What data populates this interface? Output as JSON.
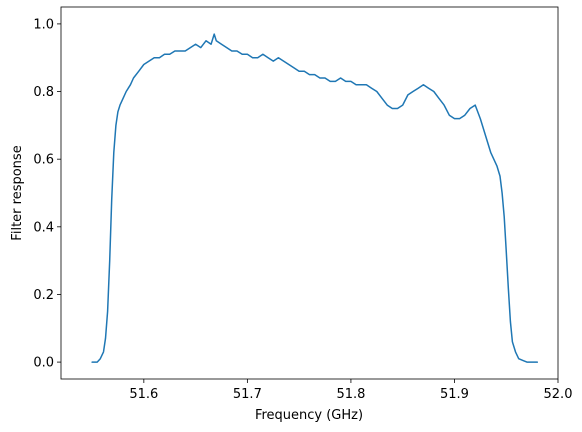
{
  "chart_data": {
    "type": "line",
    "xlabel": "Frequency (GHz)",
    "ylabel": "Filter response",
    "xlim": [
      51.52,
      52.0
    ],
    "ylim": [
      -0.05,
      1.05
    ],
    "xticks": [
      51.6,
      51.7,
      51.8,
      51.9,
      52.0
    ],
    "xtick_labels": [
      "51.6",
      "51.7",
      "51.8",
      "51.9",
      "52.0"
    ],
    "yticks": [
      0.0,
      0.2,
      0.4,
      0.6,
      0.8,
      1.0
    ],
    "ytick_labels": [
      "0.0",
      "0.2",
      "0.4",
      "0.6",
      "0.8",
      "1.0"
    ],
    "grid": false,
    "color": "#1f77b4",
    "series": [
      {
        "x": [
          51.55,
          51.555,
          51.558,
          51.561,
          51.563,
          51.565,
          51.567,
          51.569,
          51.571,
          51.573,
          51.575,
          51.577,
          51.58,
          51.583,
          51.587,
          51.59,
          51.595,
          51.6,
          51.605,
          51.61,
          51.615,
          51.62,
          51.625,
          51.63,
          51.635,
          51.64,
          51.645,
          51.65,
          51.655,
          51.66,
          51.665,
          51.668,
          51.67,
          51.675,
          51.68,
          51.685,
          51.69,
          51.695,
          51.7,
          51.705,
          51.71,
          51.715,
          51.72,
          51.725,
          51.73,
          51.735,
          51.74,
          51.745,
          51.75,
          51.755,
          51.76,
          51.765,
          51.77,
          51.775,
          51.78,
          51.785,
          51.79,
          51.795,
          51.8,
          51.805,
          51.81,
          51.815,
          51.82,
          51.825,
          51.83,
          51.835,
          51.84,
          51.845,
          51.85,
          51.855,
          51.86,
          51.865,
          51.87,
          51.875,
          51.88,
          51.885,
          51.89,
          51.895,
          51.9,
          51.905,
          51.91,
          51.915,
          51.92,
          51.925,
          51.93,
          51.935,
          51.938,
          51.941,
          51.944,
          51.946,
          51.948,
          51.95,
          51.952,
          51.954,
          51.956,
          51.959,
          51.962,
          51.966,
          51.97,
          51.975,
          51.98
        ],
        "y": [
          0.0,
          0.0,
          0.01,
          0.03,
          0.07,
          0.15,
          0.3,
          0.48,
          0.62,
          0.7,
          0.74,
          0.76,
          0.78,
          0.8,
          0.82,
          0.84,
          0.86,
          0.88,
          0.89,
          0.9,
          0.9,
          0.91,
          0.91,
          0.92,
          0.92,
          0.92,
          0.93,
          0.94,
          0.93,
          0.95,
          0.94,
          0.97,
          0.95,
          0.94,
          0.93,
          0.92,
          0.92,
          0.91,
          0.91,
          0.9,
          0.9,
          0.91,
          0.9,
          0.89,
          0.9,
          0.89,
          0.88,
          0.87,
          0.86,
          0.86,
          0.85,
          0.85,
          0.84,
          0.84,
          0.83,
          0.83,
          0.84,
          0.83,
          0.83,
          0.82,
          0.82,
          0.82,
          0.81,
          0.8,
          0.78,
          0.76,
          0.75,
          0.75,
          0.76,
          0.79,
          0.8,
          0.81,
          0.82,
          0.81,
          0.8,
          0.78,
          0.76,
          0.73,
          0.72,
          0.72,
          0.73,
          0.75,
          0.76,
          0.72,
          0.67,
          0.62,
          0.6,
          0.58,
          0.55,
          0.5,
          0.43,
          0.33,
          0.22,
          0.12,
          0.06,
          0.03,
          0.01,
          0.005,
          0.0,
          0.0,
          0.0
        ]
      }
    ]
  }
}
